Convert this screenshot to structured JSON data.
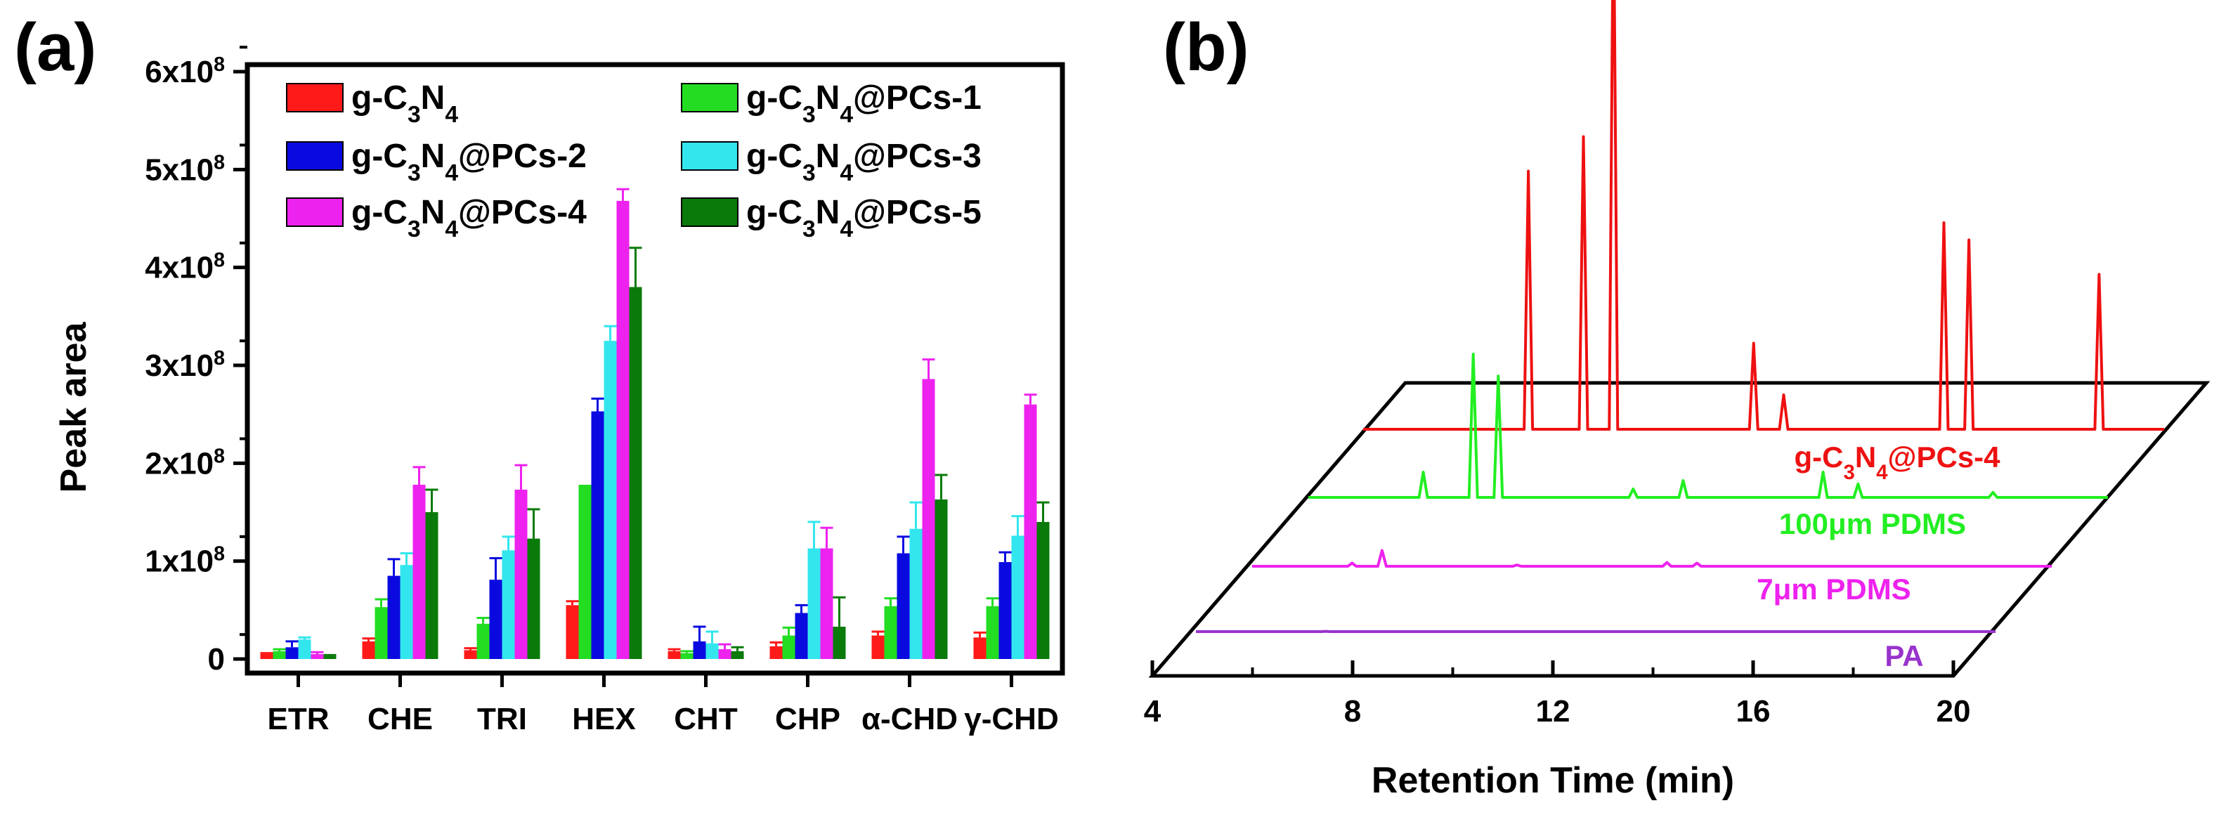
{
  "chart_data": [
    {
      "type": "bar",
      "panel_label": "(a)",
      "title": "",
      "xlabel": "",
      "ylabel": "Peak area",
      "ylim": [
        0,
        600000000
      ],
      "ytick_values": [
        0,
        100000000,
        200000000,
        300000000,
        400000000,
        500000000,
        600000000
      ],
      "ytick_labels": [
        {
          "base": "0",
          "exp": ""
        },
        {
          "base": "1x10",
          "exp": "8"
        },
        {
          "base": "2x10",
          "exp": "8"
        },
        {
          "base": "3x10",
          "exp": "8"
        },
        {
          "base": "4x10",
          "exp": "8"
        },
        {
          "base": "5x10",
          "exp": "8"
        },
        {
          "base": "6x10",
          "exp": "8"
        }
      ],
      "categories": [
        "ETR",
        "CHE",
        "TRI",
        "HEX",
        "CHT",
        "CHP",
        "α-CHD",
        "γ-CHD"
      ],
      "legend_position": "top-left",
      "series": [
        {
          "name": "g-C3N4",
          "label_parts": [
            [
              "g-C",
              ""
            ],
            [
              "3",
              "sub"
            ],
            [
              "N",
              ""
            ],
            [
              "4",
              "sub"
            ]
          ],
          "color": "#ff1a1a",
          "values": [
            5000000,
            18000000,
            9000000,
            55000000,
            8000000,
            13000000,
            24000000,
            22000000
          ],
          "errors": [
            1000000,
            3000000,
            2000000,
            4000000,
            2000000,
            4000000,
            4000000,
            5000000
          ]
        },
        {
          "name": "g-C3N4@PCs-1",
          "label_parts": [
            [
              "g-C",
              ""
            ],
            [
              "3",
              "sub"
            ],
            [
              "N",
              ""
            ],
            [
              "4",
              "sub"
            ],
            [
              "@PCs-1",
              ""
            ]
          ],
          "color": "#22dd22",
          "values": [
            8000000,
            53000000,
            36000000,
            178000000,
            6000000,
            24000000,
            54000000,
            54000000
          ],
          "errors": [
            2000000,
            8000000,
            6000000,
            0,
            2000000,
            8000000,
            8000000,
            8000000
          ]
        },
        {
          "name": "g-C3N4@PCs-2",
          "label_parts": [
            [
              "g-C",
              ""
            ],
            [
              "3",
              "sub"
            ],
            [
              "N",
              ""
            ],
            [
              "4",
              "sub"
            ],
            [
              "@PCs-2",
              ""
            ]
          ],
          "color": "#0a0ae0",
          "values": [
            12000000,
            85000000,
            81000000,
            253000000,
            18000000,
            47000000,
            108000000,
            99000000
          ],
          "errors": [
            6000000,
            17000000,
            22000000,
            13000000,
            15000000,
            8000000,
            17000000,
            10000000
          ]
        },
        {
          "name": "g-C3N4@PCs-3",
          "label_parts": [
            [
              "g-C",
              ""
            ],
            [
              "3",
              "sub"
            ],
            [
              "N",
              ""
            ],
            [
              "4",
              "sub"
            ],
            [
              "@PCs-3",
              ""
            ]
          ],
          "color": "#33e6ee",
          "values": [
            20000000,
            96000000,
            111000000,
            325000000,
            16000000,
            113000000,
            133000000,
            126000000
          ],
          "errors": [
            2000000,
            12000000,
            14000000,
            15000000,
            12000000,
            27000000,
            27000000,
            20000000
          ]
        },
        {
          "name": "g-C3N4@PCs-4",
          "label_parts": [
            [
              "g-C",
              ""
            ],
            [
              "3",
              "sub"
            ],
            [
              "N",
              ""
            ],
            [
              "4",
              "sub"
            ],
            [
              "@PCs-4",
              ""
            ]
          ],
          "color": "#ee22ee",
          "values": [
            5000000,
            178000000,
            173000000,
            468000000,
            10000000,
            113000000,
            286000000,
            260000000
          ],
          "errors": [
            2000000,
            18000000,
            25000000,
            12000000,
            5000000,
            21000000,
            20000000,
            10000000
          ]
        },
        {
          "name": "g-C3N4@PCs-5",
          "label_parts": [
            [
              "g-C",
              ""
            ],
            [
              "3",
              "sub"
            ],
            [
              "N",
              ""
            ],
            [
              "4",
              "sub"
            ],
            [
              "@PCs-5",
              ""
            ]
          ],
          "color": "#0a7a0a",
          "values": [
            3000000,
            150000000,
            123000000,
            380000000,
            8000000,
            33000000,
            163000000,
            140000000
          ],
          "errors": [
            1000000,
            23000000,
            30000000,
            40000000,
            4000000,
            30000000,
            25000000,
            20000000
          ]
        }
      ]
    },
    {
      "type": "line",
      "panel_label": "(b)",
      "title": "",
      "xlabel": "Retention Time (min)",
      "ylabel": "",
      "xlim": [
        4,
        20
      ],
      "xtick_values": [
        4,
        8,
        12,
        16,
        20
      ],
      "xtick_labels": [
        "4",
        "8",
        "12",
        "16",
        "20"
      ],
      "series": [
        {
          "name": "g-C3N4@PCs-4",
          "label_parts": [
            [
              "g-C",
              ""
            ],
            [
              "3",
              "sub"
            ],
            [
              "N",
              ""
            ],
            [
              "4",
              "sub"
            ],
            [
              "@PCs-4",
              ""
            ]
          ],
          "color": "#ee1111",
          "peaks": [
            [
              7.3,
              0.75
            ],
            [
              8.4,
              0.85
            ],
            [
              9.0,
              1.6
            ],
            [
              11.8,
              0.25
            ],
            [
              12.4,
              0.1
            ],
            [
              15.6,
              0.6
            ],
            [
              16.1,
              0.55
            ],
            [
              18.7,
              0.45
            ]
          ]
        },
        {
          "name": "100μm PDMS",
          "label_parts": [
            [
              "100μm PDMS",
              ""
            ]
          ],
          "color": "#22ee22",
          "peaks": [
            [
              6.3,
              0.15
            ],
            [
              7.3,
              0.85
            ],
            [
              7.8,
              0.72
            ],
            [
              10.5,
              0.05
            ],
            [
              11.5,
              0.1
            ],
            [
              14.3,
              0.15
            ],
            [
              15.0,
              0.08
            ],
            [
              17.7,
              0.03
            ]
          ]
        },
        {
          "name": "7μm PDMS",
          "label_parts": [
            [
              "7μm PDMS",
              ""
            ]
          ],
          "color": "#ee22ee",
          "peaks": [
            [
              6.0,
              0.05
            ],
            [
              6.6,
              0.25
            ],
            [
              9.3,
              0.02
            ],
            [
              12.3,
              0.06
            ],
            [
              12.9,
              0.05
            ]
          ]
        },
        {
          "name": "PA",
          "label_parts": [
            [
              "PA",
              ""
            ]
          ],
          "color": "#9933cc",
          "peaks": [
            [
              6.6,
              0.01
            ]
          ]
        }
      ]
    }
  ]
}
